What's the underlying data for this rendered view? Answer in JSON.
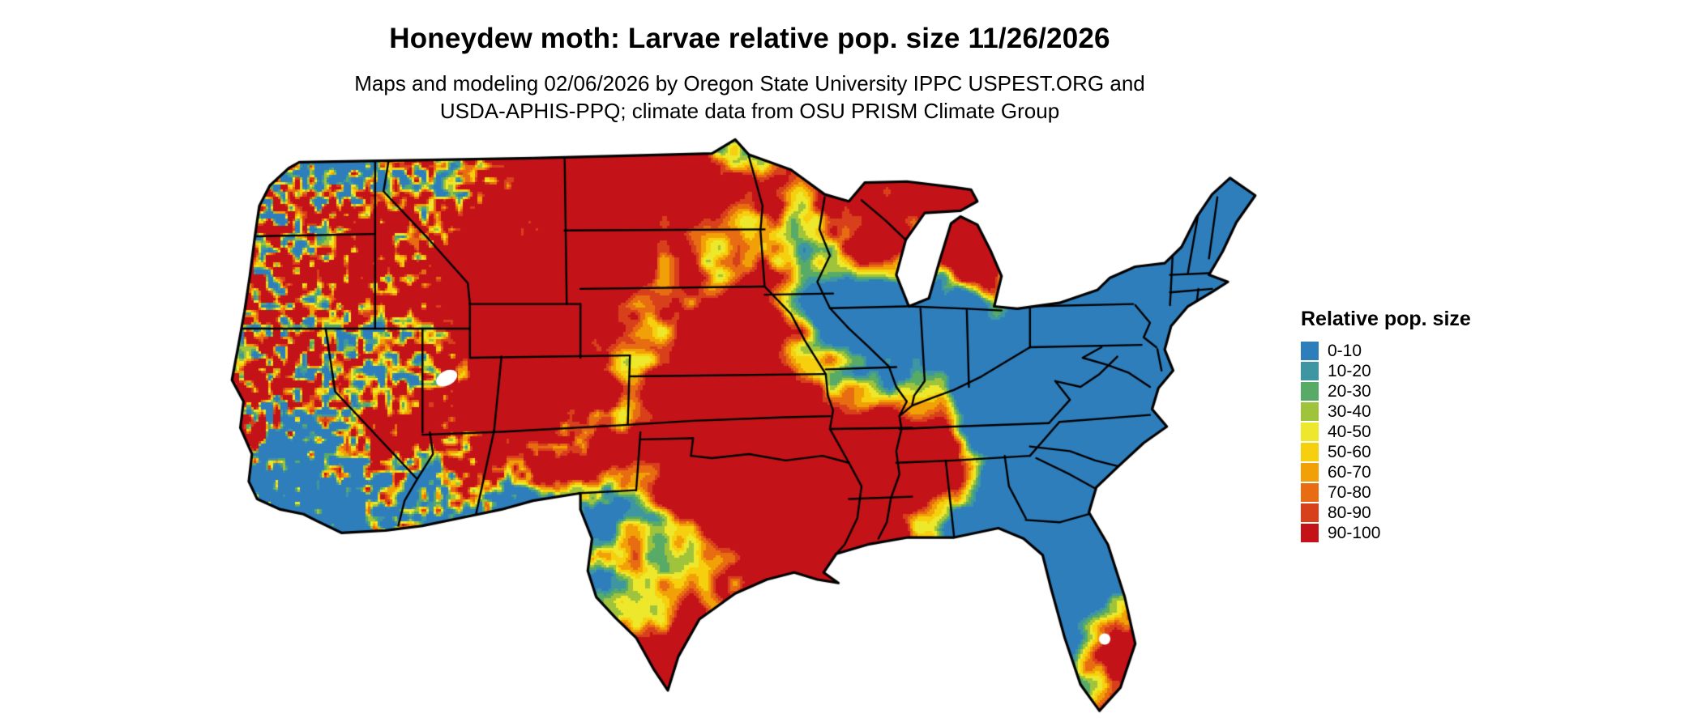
{
  "title": "Honeydew moth: Larvae relative pop. size 11/26/2026",
  "subtitle": {
    "line1": "Maps and modeling 02/06/2026 by Oregon State University IPPC USPEST.ORG and",
    "line2": "USDA-APHIS-PPQ; climate data from OSU PRISM Climate Group"
  },
  "legend": {
    "title": "Relative pop. size",
    "items": [
      {
        "label": "0-10",
        "color": "#2E7EBC"
      },
      {
        "label": "10-20",
        "color": "#3D96A2"
      },
      {
        "label": "20-30",
        "color": "#58AB66"
      },
      {
        "label": "30-40",
        "color": "#9FC43C"
      },
      {
        "label": "40-50",
        "color": "#EDE82B"
      },
      {
        "label": "50-60",
        "color": "#F6D00E"
      },
      {
        "label": "60-70",
        "color": "#F2A007"
      },
      {
        "label": "70-80",
        "color": "#E76C12"
      },
      {
        "label": "80-90",
        "color": "#D8401C"
      },
      {
        "label": "90-100",
        "color": "#C31218"
      }
    ]
  },
  "map": {
    "region": "Contiguous United States",
    "type": "raster-distribution-map",
    "boundary_color": "#000000",
    "water_color": "#ffffff"
  }
}
